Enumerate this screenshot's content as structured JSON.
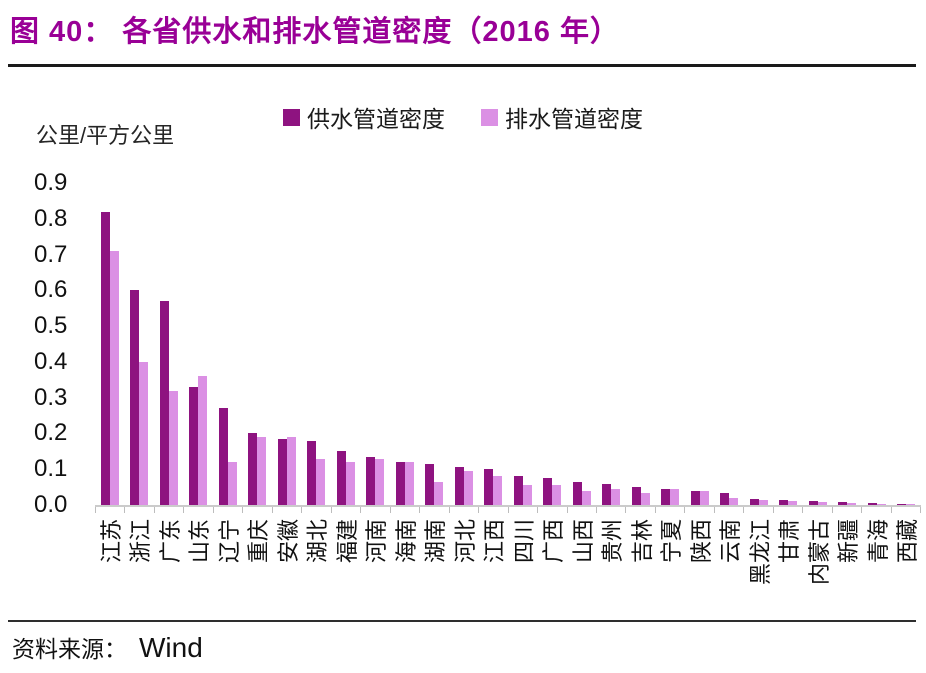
{
  "title": "图 40： 各省供水和排水管道密度（2016 年）",
  "source": {
    "label": "资料来源：",
    "value": "Wind"
  },
  "colors": {
    "title_accent": "#990096",
    "supply_bar": "#8E1380",
    "drain_bar": "#DB90E4",
    "axis_line": "#CBCBCB",
    "top_rule": "#1A1A1A",
    "bottom_rule": "#2E2E2E"
  },
  "chart_data": {
    "type": "bar",
    "title": "图 40： 各省供水和排水管道密度（2016 年）",
    "unit_label": "公里/平方公里",
    "legend_position": "top",
    "grid": false,
    "ylim": [
      0,
      0.9
    ],
    "ytick_labels": [
      "0.9",
      "0.8",
      "0.7",
      "0.6",
      "0.5",
      "0.4",
      "0.3",
      "0.2",
      "0.1",
      "0.0"
    ],
    "categories": [
      "江苏",
      "浙江",
      "广东",
      "山东",
      "辽宁",
      "重庆",
      "安徽",
      "湖北",
      "福建",
      "河南",
      "海南",
      "湖南",
      "河北",
      "江西",
      "四川",
      "广西",
      "山西",
      "贵州",
      "吉林",
      "宁夏",
      "陕西",
      "云南",
      "黑龙江",
      "甘肃",
      "内蒙古",
      "新疆",
      "青海",
      "西藏"
    ],
    "series": [
      {
        "name": "供水管道密度",
        "color": "#8E1380",
        "values": [
          0.82,
          0.6,
          0.57,
          0.33,
          0.27,
          0.2,
          0.185,
          0.18,
          0.15,
          0.135,
          0.12,
          0.115,
          0.105,
          0.1,
          0.08,
          0.075,
          0.065,
          0.06,
          0.05,
          0.045,
          0.038,
          0.035,
          0.016,
          0.013,
          0.01,
          0.008,
          0.005,
          0.002
        ]
      },
      {
        "name": "排水管道密度",
        "color": "#DB90E4",
        "values": [
          0.71,
          0.4,
          0.32,
          0.36,
          0.12,
          0.19,
          0.19,
          0.13,
          0.12,
          0.13,
          0.12,
          0.065,
          0.095,
          0.08,
          0.055,
          0.055,
          0.04,
          0.045,
          0.035,
          0.045,
          0.038,
          0.021,
          0.015,
          0.01,
          0.008,
          0.007,
          0.004,
          0.002
        ]
      }
    ]
  }
}
